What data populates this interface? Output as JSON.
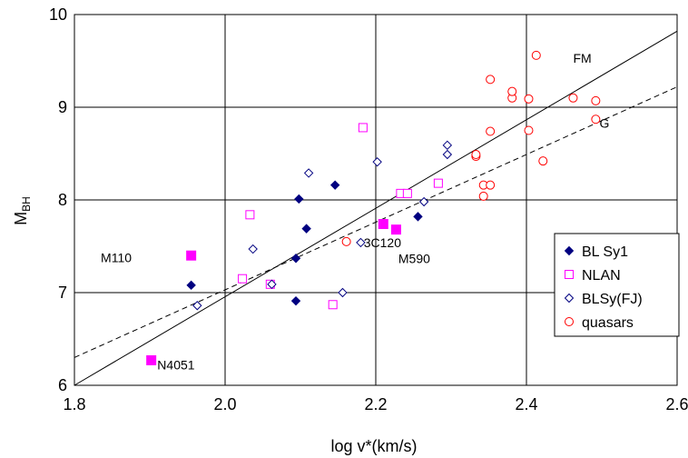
{
  "chart_data": {
    "type": "scatter",
    "xlabel": "log v*(km/s)",
    "ylabel_main": "M",
    "ylabel_sub": "BH",
    "xlim": [
      1.8,
      2.6
    ],
    "ylim": [
      6,
      10
    ],
    "x_ticks": [
      1.8,
      2.0,
      2.2,
      2.4,
      2.6
    ],
    "x_tick_labels": [
      "1.8",
      "2.0",
      "2.2",
      "2.4",
      "2.6"
    ],
    "y_ticks": [
      6,
      7,
      8,
      9,
      10
    ],
    "y_tick_labels": [
      "6",
      "7",
      "8",
      "9",
      "10"
    ],
    "grid": true,
    "legend_position": "bottom-right",
    "series": [
      {
        "name": "BL Sy1",
        "marker": "diamond-filled",
        "color": "#000080",
        "points": [
          [
            1.955,
            7.08
          ],
          [
            2.094,
            6.91
          ],
          [
            2.094,
            7.37
          ],
          [
            2.098,
            8.01
          ],
          [
            2.108,
            7.69
          ],
          [
            2.146,
            8.16
          ],
          [
            2.256,
            7.82
          ]
        ]
      },
      {
        "name": "NLAN",
        "marker": "square-open",
        "color": "#ff00ff",
        "points": [
          [
            2.023,
            7.15
          ],
          [
            2.033,
            7.84
          ],
          [
            2.06,
            7.09
          ],
          [
            2.143,
            6.87
          ],
          [
            2.183,
            8.78
          ],
          [
            2.233,
            8.07
          ],
          [
            2.242,
            8.07
          ],
          [
            2.283,
            8.18
          ]
        ]
      },
      {
        "name": "BLSy(FJ)",
        "marker": "diamond-open",
        "color": "#000080",
        "points": [
          [
            1.963,
            6.86
          ],
          [
            2.037,
            7.47
          ],
          [
            2.062,
            7.09
          ],
          [
            2.111,
            8.29
          ],
          [
            2.156,
            7.0
          ],
          [
            2.18,
            7.54
          ],
          [
            2.202,
            8.41
          ],
          [
            2.264,
            7.98
          ],
          [
            2.295,
            8.49
          ],
          [
            2.295,
            8.59
          ]
        ]
      },
      {
        "name": "quasars",
        "marker": "circle-open",
        "color": "#ff0000",
        "points": [
          [
            2.161,
            7.55
          ],
          [
            2.333,
            8.47
          ],
          [
            2.333,
            8.49
          ],
          [
            2.343,
            8.04
          ],
          [
            2.343,
            8.16
          ],
          [
            2.352,
            8.16
          ],
          [
            2.352,
            8.74
          ],
          [
            2.352,
            9.3
          ],
          [
            2.381,
            9.1
          ],
          [
            2.381,
            9.17
          ],
          [
            2.403,
            8.75
          ],
          [
            2.403,
            9.09
          ],
          [
            2.413,
            9.56
          ],
          [
            2.422,
            8.42
          ],
          [
            2.462,
            9.1
          ],
          [
            2.492,
            8.87
          ],
          [
            2.492,
            9.07
          ]
        ]
      }
    ],
    "highlighted": {
      "marker": "square-filled",
      "color": "#ff00ff",
      "points": [
        [
          1.955,
          7.4
        ],
        [
          1.902,
          6.27
        ],
        [
          2.21,
          7.74
        ],
        [
          2.227,
          7.68
        ]
      ]
    },
    "fit_lines": [
      {
        "label": "FM",
        "style": "solid",
        "from": [
          1.8,
          6.0
        ],
        "to": [
          2.6,
          9.82
        ]
      },
      {
        "label": "G",
        "style": "dashed",
        "from": [
          1.8,
          6.3
        ],
        "to": [
          2.6,
          9.22
        ]
      }
    ],
    "annotations": [
      {
        "text": "M110",
        "x": 1.835,
        "y": 7.33
      },
      {
        "text": "N4051",
        "x": 1.91,
        "y": 6.17
      },
      {
        "text": "3C120",
        "x": 2.184,
        "y": 7.49
      },
      {
        "text": "M590",
        "x": 2.23,
        "y": 7.32
      },
      {
        "text": "FM",
        "x": 2.462,
        "y": 9.48
      },
      {
        "text": "G",
        "x": 2.497,
        "y": 8.78
      }
    ]
  }
}
